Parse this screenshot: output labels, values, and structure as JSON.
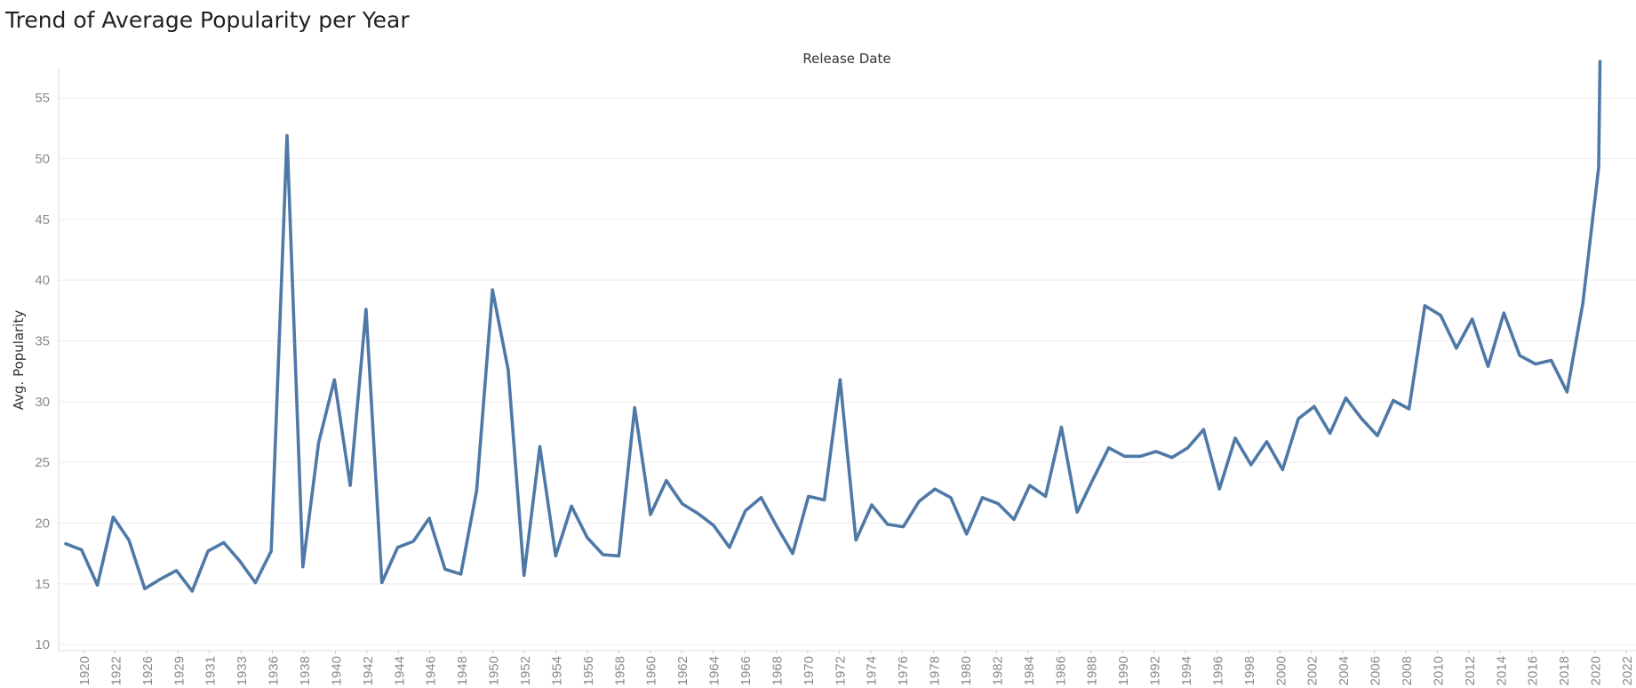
{
  "chart_data": {
    "type": "line",
    "title": "Trend of Average Popularity per Year",
    "xlabel": "Release Date",
    "ylabel": "Avg. Popularity",
    "line_color": "#4e79a7",
    "grid": true,
    "ylim": [
      9.5,
      57.5
    ],
    "yticks": [
      10,
      15,
      20,
      25,
      30,
      35,
      40,
      45,
      50,
      55
    ],
    "xtick_labels": [
      "1920",
      "1922",
      "1926",
      "1929",
      "1931",
      "1933",
      "1936",
      "1938",
      "1940",
      "1942",
      "1944",
      "1946",
      "1948",
      "1950",
      "1952",
      "1954",
      "1956",
      "1958",
      "1960",
      "1962",
      "1964",
      "1966",
      "1968",
      "1970",
      "1972",
      "1974",
      "1976",
      "1978",
      "1980",
      "1982",
      "1984",
      "1986",
      "1988",
      "1990",
      "1992",
      "1994",
      "1996",
      "1998",
      "2000",
      "2002",
      "2004",
      "2006",
      "2008",
      "2010",
      "2012",
      "2014",
      "2016",
      "2018",
      "2020",
      "2022"
    ],
    "values": [
      18.3,
      17.8,
      14.9,
      20.5,
      18.6,
      14.6,
      15.4,
      16.1,
      14.4,
      17.7,
      18.4,
      16.9,
      15.1,
      17.7,
      51.9,
      16.4,
      26.6,
      31.8,
      23.1,
      37.6,
      15.1,
      18.0,
      18.5,
      20.4,
      16.2,
      15.8,
      22.7,
      39.2,
      32.6,
      15.7,
      26.3,
      17.3,
      21.4,
      18.8,
      17.4,
      17.3,
      29.5,
      20.7,
      23.5,
      21.6,
      20.8,
      19.8,
      18.0,
      21.0,
      22.1,
      19.7,
      17.5,
      22.2,
      21.9,
      31.8,
      18.6,
      21.5,
      19.9,
      19.7,
      21.8,
      22.8,
      22.1,
      19.1,
      22.1,
      21.6,
      20.3,
      23.1,
      22.2,
      27.9,
      20.9,
      23.6,
      26.2,
      25.5,
      25.5,
      25.9,
      25.4,
      26.2,
      27.7,
      22.8,
      27.0,
      24.8,
      26.7,
      24.4,
      28.6,
      29.6,
      27.4,
      30.3,
      28.6,
      27.2,
      30.1,
      29.4,
      37.9,
      37.1,
      34.4,
      36.8,
      32.9,
      37.3,
      33.8,
      33.1,
      33.4,
      30.8,
      38.1,
      49.3
    ],
    "final_segment_end": 58.0
  }
}
